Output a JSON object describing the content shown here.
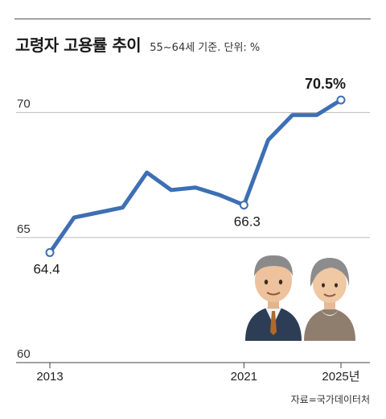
{
  "title": "고령자 고용률 추이",
  "subtitle": "55~64세 기준. 단위: %",
  "source": "자료=국가데이터처",
  "chart_data": {
    "type": "line",
    "title": "고령자 고용률 추이",
    "ylabel": "",
    "xlabel": "",
    "x": [
      2013,
      2014,
      2015,
      2016,
      2017,
      2018,
      2019,
      2020,
      2021,
      2022,
      2023,
      2024,
      2025
    ],
    "x_tick_labels": [
      "2013",
      "2021",
      "2025년"
    ],
    "x_tick_positions": [
      2013,
      2021,
      2025
    ],
    "y_ticks": [
      60,
      65,
      70
    ],
    "ylim": [
      60,
      72.5
    ],
    "series": [
      {
        "values": [
          64.4,
          65.8,
          66.0,
          66.2,
          67.6,
          66.9,
          67.0,
          66.7,
          66.3,
          68.9,
          69.9,
          69.9,
          70.5
        ],
        "color": "#3d6fb4"
      }
    ],
    "annotations": [
      {
        "x": 2013,
        "value": 64.4,
        "label": "64.4"
      },
      {
        "x": 2021,
        "value": 66.3,
        "label": "66.3"
      },
      {
        "x": 2025,
        "value": 70.5,
        "label": "70.5%"
      }
    ],
    "grid": true
  }
}
